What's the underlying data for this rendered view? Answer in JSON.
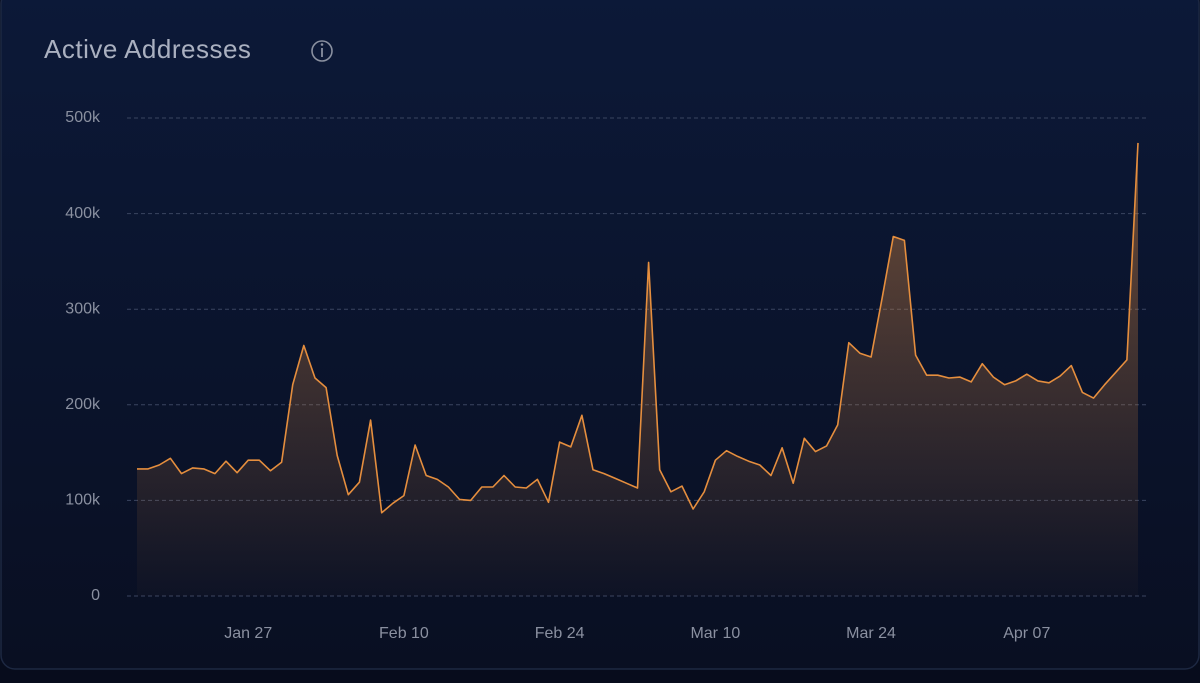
{
  "chart_data": {
    "type": "area",
    "title": "Active Addresses",
    "color": "#e58e3e",
    "categories": [
      null,
      null,
      null,
      null,
      null,
      null,
      null,
      null,
      null,
      null,
      "Jan 27",
      null,
      null,
      null,
      null,
      null,
      null,
      null,
      null,
      null,
      null,
      null,
      null,
      null,
      "Feb 10",
      null,
      null,
      null,
      null,
      null,
      null,
      null,
      null,
      null,
      null,
      null,
      null,
      null,
      "Feb 24",
      null,
      null,
      null,
      null,
      null,
      null,
      null,
      null,
      null,
      null,
      null,
      null,
      null,
      "Mar 10",
      null,
      null,
      null,
      null,
      null,
      null,
      null,
      null,
      null,
      null,
      null,
      null,
      null,
      "Mar 24",
      null,
      null,
      null,
      null,
      null,
      null,
      null,
      null,
      null,
      null,
      null,
      null,
      null,
      "Apr 07",
      null,
      null,
      null,
      null,
      null,
      null,
      null,
      null,
      null,
      null
    ],
    "values": [
      133000,
      133000,
      137000,
      144000,
      128000,
      134000,
      133000,
      128000,
      141000,
      129000,
      142000,
      142000,
      131000,
      140000,
      221000,
      262000,
      228000,
      218000,
      147000,
      106000,
      119000,
      184000,
      87000,
      97000,
      105000,
      158000,
      126000,
      122000,
      114000,
      101000,
      100000,
      114000,
      114000,
      126000,
      114000,
      113000,
      122000,
      98000,
      161000,
      156000,
      189000,
      132000,
      128000,
      123000,
      118000,
      113000,
      349000,
      132000,
      109000,
      115000,
      91000,
      109000,
      142000,
      152000,
      146000,
      141000,
      137000,
      126000,
      155000,
      118000,
      165000,
      151000,
      157000,
      179000,
      265000,
      254000,
      250000,
      312000,
      376000,
      372000,
      252000,
      231000,
      231000,
      228000,
      229000,
      224000,
      243000,
      229000,
      221000,
      225000,
      232000,
      225000,
      223000,
      230000,
      241000,
      213000,
      207000,
      221000,
      234000,
      247000,
      474000
    ],
    "ylim": [
      0,
      500000
    ],
    "yticks": [
      0,
      {
        "value": 100000,
        "label": "100k"
      },
      {
        "value": 200000,
        "label": "200k"
      },
      {
        "value": 300000,
        "label": "300k"
      },
      {
        "value": 400000,
        "label": "400k"
      },
      {
        "value": 500000,
        "label": "500k"
      }
    ],
    "grid": true
  }
}
